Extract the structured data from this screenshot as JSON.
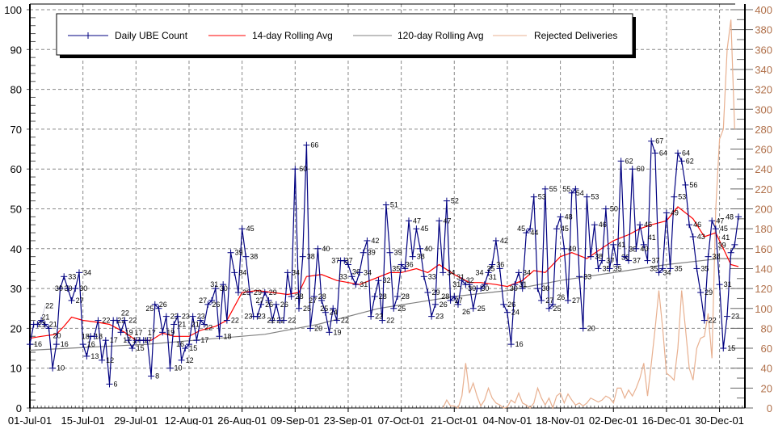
{
  "chart_data": {
    "type": "line",
    "title": "",
    "xlabel": "",
    "ylabel": "",
    "ylim": [
      0,
      100
    ],
    "y2lim": [
      0,
      400
    ],
    "grid": true,
    "legend_placement": "top",
    "x_tick_labels": [
      "01-Jul-01",
      "15-Jul-01",
      "29-Jul-01",
      "12-Aug-01",
      "26-Aug-01",
      "09-Sep-01",
      "23-Sep-01",
      "07-Oct-01",
      "21-Oct-01",
      "04-Nov-01",
      "18-Nov-01",
      "02-Dec-01",
      "16-Dec-01",
      "30-Dec-01"
    ],
    "y_tick_labels": [
      "0",
      "10",
      "20",
      "30",
      "40",
      "50",
      "60",
      "70",
      "80",
      "90",
      "100"
    ],
    "y2_tick_labels": [
      "0",
      "20",
      "40",
      "60",
      "80",
      "100",
      "120",
      "140",
      "160",
      "180",
      "200",
      "220",
      "240",
      "260",
      "280",
      "300",
      "320",
      "340",
      "360",
      "380",
      "400"
    ],
    "series": [
      {
        "name": "Daily UBE Count",
        "color": "#000080",
        "axis": "left",
        "data_labels": true,
        "by_month": [
          {
            "month": "Jul-01",
            "from_day": 1,
            "values": [
              16,
              21,
              21,
              22,
              21,
              20,
              10,
              16,
              30,
              33,
              30,
              27,
              30,
              34,
              16,
              13,
              18,
              18,
              22,
              12,
              17,
              6,
              22,
              22,
              19,
              22,
              17,
              15,
              17,
              17,
              17
            ]
          },
          {
            "month": "Aug-01",
            "from_day": 1,
            "values": [
              17,
              8,
              26,
              25,
              19,
              23,
              10,
              21,
              23,
              12,
              15,
              16,
              23,
              17,
              22,
              21,
              26,
              27,
              30,
              18,
              31,
              22,
              39,
              34,
              29,
              45,
              38,
              29,
              23,
              23,
              26
            ]
          },
          {
            "month": "Sep-01",
            "from_day": 1,
            "values": [
              29,
              27,
              22,
              26,
              22,
              22,
              34,
              28,
              60,
              25,
              38,
              66,
              20,
              28,
              40,
              27,
              24,
              19,
              25,
              22,
              37,
              37,
              36,
              33,
              31,
              34,
              39,
              42,
              23,
              28
            ]
          },
          {
            "month": "Oct-01",
            "from_day": 1,
            "values": [
              32,
              22,
              51,
              39,
              25,
              28,
              36,
              35,
              47,
              38,
              45,
              40,
              33,
              29,
              23,
              26,
              47,
              34,
              52,
              27,
              28,
              26,
              32,
              31,
              31,
              25,
              30,
              30,
              31,
              34,
              36
            ]
          },
          {
            "month": "Nov-01",
            "from_day": 1,
            "values": [
              42,
              35,
              26,
              24,
              16,
              31,
              34,
              30,
              44,
              45,
              53,
              30,
              27,
              55,
              25,
              26,
              45,
              48,
              40,
              27,
              54,
              55,
              33,
              20,
              53,
              38,
              46,
              35,
              37,
              50
            ]
          },
          {
            "month": "Dec-01",
            "from_day": 1,
            "values": [
              35,
              41,
              36,
              62,
              38,
              37,
              60,
              40,
              46,
              41,
              37,
              67,
              64,
              34,
              35,
              49,
              35,
              53,
              64,
              62,
              56,
              46,
              43,
              35,
              29,
              22,
              38,
              47,
              45,
              31,
              15
            ]
          },
          {
            "month": "Jan-02",
            "from_day": 1,
            "values": [
              23,
              39,
              41,
              48
            ]
          }
        ]
      },
      {
        "name": "14-day Rolling Avg",
        "color": "#ff0000",
        "axis": "left",
        "points": [
          [
            "01-Jul-01",
            17.5
          ],
          [
            "04-Jul-01",
            18
          ],
          [
            "08-Jul-01",
            18.5
          ],
          [
            "10-Jul-01",
            20.5
          ],
          [
            "12-Jul-01",
            22.8
          ],
          [
            "15-Jul-01",
            22
          ],
          [
            "19-Jul-01",
            21.5
          ],
          [
            "22-Jul-01",
            21
          ],
          [
            "26-Jul-01",
            19
          ],
          [
            "29-Jul-01",
            17
          ],
          [
            "02-Aug-01",
            17
          ],
          [
            "05-Aug-01",
            18.8
          ],
          [
            "08-Aug-01",
            18
          ],
          [
            "12-Aug-01",
            18
          ],
          [
            "15-Aug-01",
            19.5
          ],
          [
            "19-Aug-01",
            20.5
          ],
          [
            "22-Aug-01",
            22
          ],
          [
            "26-Aug-01",
            29
          ],
          [
            "30-Aug-01",
            29.5
          ],
          [
            "03-Sep-01",
            29
          ],
          [
            "07-Sep-01",
            28.5
          ],
          [
            "10-Sep-01",
            29
          ],
          [
            "12-Sep-01",
            33
          ],
          [
            "16-Sep-01",
            33.5
          ],
          [
            "20-Sep-01",
            32
          ],
          [
            "23-Sep-01",
            31.5
          ],
          [
            "26-Sep-01",
            31
          ],
          [
            "30-Sep-01",
            32.5
          ],
          [
            "04-Oct-01",
            34
          ],
          [
            "07-Oct-01",
            34
          ],
          [
            "11-Oct-01",
            35
          ],
          [
            "14-Oct-01",
            34
          ],
          [
            "17-Oct-01",
            36
          ],
          [
            "21-Oct-01",
            33.5
          ],
          [
            "25-Oct-01",
            31.5
          ],
          [
            "28-Oct-01",
            31.5
          ],
          [
            "01-Nov-01",
            31
          ],
          [
            "04-Nov-01",
            30.5
          ],
          [
            "08-Nov-01",
            32
          ],
          [
            "11-Nov-01",
            34.5
          ],
          [
            "14-Nov-01",
            34
          ],
          [
            "18-Nov-01",
            38
          ],
          [
            "21-Nov-01",
            39
          ],
          [
            "25-Nov-01",
            37.5
          ],
          [
            "28-Nov-01",
            39.5
          ],
          [
            "02-Dec-01",
            42
          ],
          [
            "06-Dec-01",
            43.5
          ],
          [
            "09-Dec-01",
            45
          ],
          [
            "12-Dec-01",
            46
          ],
          [
            "16-Dec-01",
            47
          ],
          [
            "19-Dec-01",
            50.5
          ],
          [
            "23-Dec-01",
            47.5
          ],
          [
            "26-Dec-01",
            43
          ],
          [
            "29-Dec-01",
            44
          ],
          [
            "31-Dec-01",
            40
          ],
          [
            "02-Jan-02",
            36
          ],
          [
            "04-Jan-02",
            35.5
          ]
        ]
      },
      {
        "name": "120-day Rolling Avg",
        "color": "#808080",
        "axis": "left",
        "points": [
          [
            "01-Jul-01",
            14.5
          ],
          [
            "01-Aug-01",
            16
          ],
          [
            "01-Sep-01",
            18.5
          ],
          [
            "15-Sep-01",
            21
          ],
          [
            "01-Oct-01",
            25
          ],
          [
            "21-Oct-01",
            28
          ],
          [
            "04-Nov-01",
            29.5
          ],
          [
            "18-Nov-01",
            32
          ],
          [
            "02-Dec-01",
            34
          ],
          [
            "16-Dec-01",
            36
          ],
          [
            "30-Dec-01",
            37.5
          ],
          [
            "04-Jan-02",
            37.5
          ]
        ]
      },
      {
        "name": "Rejected Deliveries",
        "color": "#e8b090",
        "axis": "right",
        "by_month": [
          {
            "month": "Oct-01",
            "from_day": 18,
            "values": [
              0,
              8,
              2,
              2,
              0,
              12,
              45,
              15,
              25,
              12,
              2,
              8,
              20,
              10
            ]
          },
          {
            "month": "Nov-01",
            "from_day": 1,
            "values": [
              5,
              3,
              0,
              1,
              8,
              5,
              15,
              5,
              3,
              0,
              5,
              20,
              10,
              3,
              10,
              0,
              12,
              15,
              5,
              14,
              8,
              3,
              5,
              2,
              5,
              10,
              8,
              6,
              8,
              12
            ]
          },
          {
            "month": "Dec-01",
            "from_day": 1,
            "values": [
              10,
              5,
              20,
              20,
              10,
              18,
              12,
              20,
              30,
              45,
              12,
              45,
              80,
              118,
              80,
              35,
              32,
              28,
              60,
              118,
              80,
              40,
              28,
              60,
              70,
              72,
              95,
              50,
              200,
              270,
              280
            ]
          },
          {
            "month": "Jan-02",
            "from_day": 1,
            "values": [
              360,
              390,
              280
            ]
          }
        ]
      }
    ]
  }
}
